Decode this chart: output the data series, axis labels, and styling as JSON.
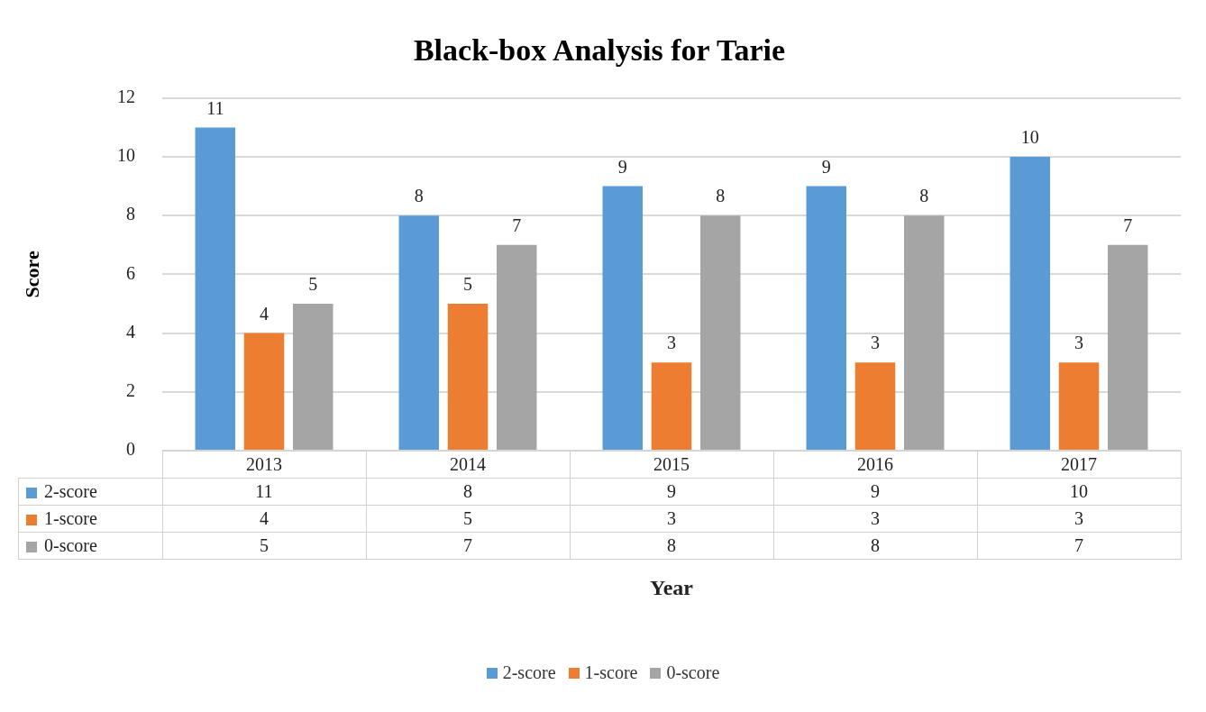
{
  "chart_data": {
    "type": "bar",
    "title": "Black-box Analysis for Tarie",
    "xlabel": "Year",
    "ylabel": "Score",
    "categories": [
      "2013",
      "2014",
      "2015",
      "2016",
      "2017"
    ],
    "series": [
      {
        "name": "2-score",
        "color": "#5b9bd5",
        "values": [
          11,
          8,
          9,
          9,
          10
        ]
      },
      {
        "name": "1-score",
        "color": "#ed7d31",
        "values": [
          4,
          5,
          3,
          3,
          3
        ]
      },
      {
        "name": "0-score",
        "color": "#a5a5a5",
        "values": [
          5,
          7,
          8,
          8,
          7
        ]
      }
    ],
    "ylim": [
      0,
      12
    ],
    "yticks": [
      0,
      2,
      4,
      6,
      8,
      10,
      12
    ],
    "grid": "y",
    "legend": "bottom",
    "data_labels": true,
    "annotations": [
      "11",
      "8",
      "9",
      "9",
      "10",
      "4",
      "5",
      "3",
      "3",
      "3",
      "5",
      "7",
      "8",
      "8",
      "7"
    ]
  }
}
